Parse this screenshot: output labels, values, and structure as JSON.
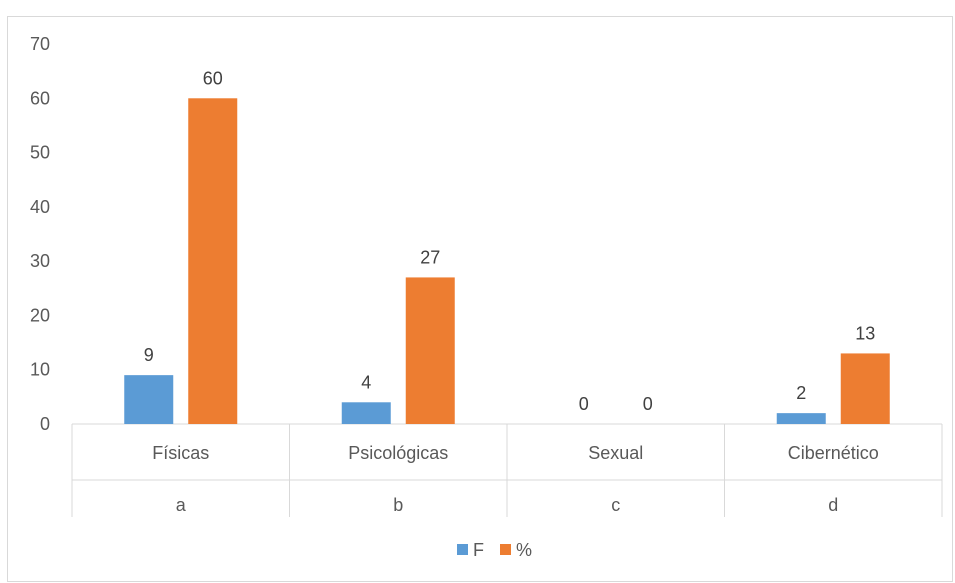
{
  "chart_data": {
    "type": "bar",
    "categories": [
      [
        "Físicas",
        "a"
      ],
      [
        "Psicológicas",
        "b"
      ],
      [
        "Sexual",
        "c"
      ],
      [
        "Cibernético",
        "d"
      ]
    ],
    "series": [
      {
        "name": "F",
        "values": [
          9,
          4,
          0,
          2
        ],
        "color": "#5b9bd5"
      },
      {
        "name": "%",
        "values": [
          60,
          27,
          0,
          13
        ],
        "color": "#ed7d31"
      }
    ],
    "ylim": [
      0,
      70
    ],
    "yticks": [
      0,
      10,
      20,
      30,
      40,
      50,
      60,
      70
    ],
    "data_labels": true,
    "grid": false,
    "legend": "bottom",
    "axis_color": "#d9d9d9"
  }
}
